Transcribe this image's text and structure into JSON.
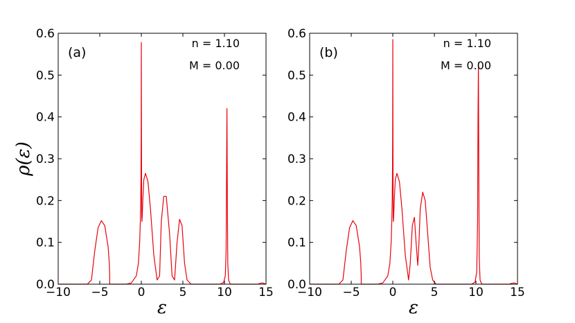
{
  "ylabel": "ρ(ε)",
  "chart_data": [
    {
      "type": "line",
      "panel_label": "(a)",
      "annotations": [
        "n = 1.10",
        "M = 0.00"
      ],
      "xlabel": "ε",
      "xlim": [
        -10,
        15
      ],
      "ylim": [
        0,
        0.6
      ],
      "xticks": [
        "−10",
        "−5",
        "0",
        "5",
        "10",
        "15"
      ],
      "yticks": [
        "0.0",
        "0.1",
        "0.2",
        "0.3",
        "0.4",
        "0.5",
        "0.6"
      ],
      "series": [
        {
          "color": "#e8000b",
          "x": [
            -10,
            -6.5,
            -6.0,
            -5.6,
            -5.2,
            -4.8,
            -4.4,
            -4.0,
            -3.85,
            -3.8,
            -3.8,
            -1.8,
            -1.2,
            -0.6,
            -0.35,
            -0.2,
            -0.12,
            -0.07,
            -0.04,
            -0.02,
            -0.01,
            0.0,
            0.01,
            0.03,
            0.05,
            0.08,
            0.12,
            0.2,
            0.3,
            0.5,
            0.8,
            1.1,
            1.5,
            1.9,
            2.2,
            2.4,
            2.7,
            3.0,
            3.4,
            3.7,
            4.0,
            4.3,
            4.6,
            4.9,
            5.2,
            5.5,
            6.0,
            7.0,
            9.5,
            9.9,
            10.1,
            10.2,
            10.25,
            10.3,
            10.35,
            10.4,
            10.5,
            10.7,
            11.2,
            13.0,
            14.0,
            14.3,
            14.6,
            15.0
          ],
          "y": [
            0.0,
            0.0,
            0.01,
            0.08,
            0.135,
            0.152,
            0.14,
            0.09,
            0.05,
            0.02,
            0.0,
            0.0,
            0.003,
            0.02,
            0.05,
            0.1,
            0.15,
            0.2,
            0.26,
            0.35,
            0.45,
            0.578,
            0.45,
            0.25,
            0.16,
            0.15,
            0.17,
            0.21,
            0.25,
            0.265,
            0.245,
            0.18,
            0.07,
            0.01,
            0.02,
            0.15,
            0.21,
            0.21,
            0.12,
            0.02,
            0.01,
            0.1,
            0.155,
            0.14,
            0.05,
            0.01,
            0.0,
            0.0,
            0.0,
            0.004,
            0.02,
            0.08,
            0.25,
            0.42,
            0.2,
            0.05,
            0.01,
            0.0,
            0.0,
            0.0,
            0.0,
            0.002,
            0.003,
            0.0
          ]
        }
      ]
    },
    {
      "type": "line",
      "panel_label": "(b)",
      "annotations": [
        "n = 1.10",
        "M = 0.00"
      ],
      "xlabel": "ε",
      "xlim": [
        -10,
        15
      ],
      "ylim": [
        0,
        0.6
      ],
      "xticks": [
        "−10",
        "−5",
        "0",
        "5",
        "10",
        "15"
      ],
      "yticks": [
        "0.0",
        "0.1",
        "0.2",
        "0.3",
        "0.4",
        "0.5",
        "0.6"
      ],
      "series": [
        {
          "color": "#e8000b",
          "x": [
            -10,
            -6.5,
            -6.0,
            -5.6,
            -5.2,
            -4.8,
            -4.4,
            -4.0,
            -3.85,
            -3.8,
            -3.8,
            -1.8,
            -1.2,
            -0.6,
            -0.35,
            -0.2,
            -0.12,
            -0.07,
            -0.04,
            -0.02,
            -0.01,
            0.0,
            0.01,
            0.03,
            0.05,
            0.08,
            0.12,
            0.2,
            0.3,
            0.5,
            0.8,
            1.1,
            1.5,
            1.9,
            2.1,
            2.35,
            2.6,
            2.8,
            3.0,
            3.15,
            3.3,
            3.6,
            3.9,
            4.2,
            4.5,
            4.8,
            5.2,
            6.0,
            9.5,
            9.9,
            10.1,
            10.2,
            10.25,
            10.3,
            10.35,
            10.4,
            10.5,
            10.7,
            11.2,
            13.0,
            14.0,
            14.3,
            14.6,
            15.0
          ],
          "y": [
            0.0,
            0.0,
            0.01,
            0.08,
            0.135,
            0.152,
            0.14,
            0.09,
            0.05,
            0.02,
            0.0,
            0.0,
            0.003,
            0.02,
            0.05,
            0.1,
            0.15,
            0.2,
            0.26,
            0.35,
            0.45,
            0.585,
            0.45,
            0.25,
            0.16,
            0.15,
            0.17,
            0.21,
            0.25,
            0.265,
            0.245,
            0.18,
            0.07,
            0.01,
            0.05,
            0.14,
            0.16,
            0.1,
            0.045,
            0.1,
            0.18,
            0.22,
            0.2,
            0.12,
            0.04,
            0.01,
            0.0,
            0.0,
            0.0,
            0.005,
            0.03,
            0.15,
            0.4,
            0.53,
            0.25,
            0.06,
            0.01,
            0.0,
            0.0,
            0.0,
            0.0,
            0.002,
            0.003,
            0.0
          ]
        }
      ]
    }
  ]
}
